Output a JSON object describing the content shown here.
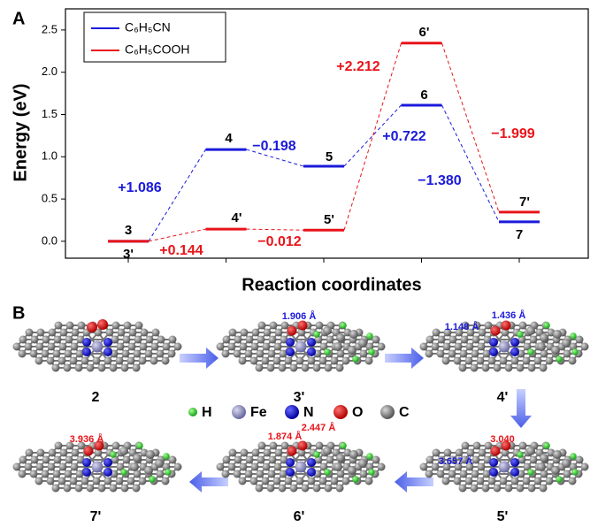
{
  "chart_data": {
    "type": "level",
    "panel_label": "A",
    "y_label": "Energy (eV)",
    "x_label": "Reaction coordinates",
    "categories": [
      null,
      null,
      null,
      null,
      null
    ],
    "ylim": [
      -0.2,
      2.75
    ],
    "yticks": [
      {
        "value": 0,
        "label": "0.0"
      },
      {
        "value": 0.5,
        "label": "0.5"
      },
      {
        "value": 1,
        "label": "1.0"
      },
      {
        "value": 1.5,
        "label": "1.5"
      },
      {
        "value": 2,
        "label": "2.0"
      },
      {
        "value": 2.5,
        "label": "2.5"
      }
    ],
    "legend": "upper left",
    "series": [
      {
        "name": "C₆H₅CN",
        "color": "#1a1adb",
        "values": [
          0,
          1.086,
          0.888,
          1.61,
          0.23
        ],
        "level_labels": [
          "3",
          "4",
          "5",
          "6",
          "7"
        ],
        "step_labels": [
          "+1.086",
          "−0.198",
          "+0.722",
          "−1.380"
        ]
      },
      {
        "name": "C₆H₅COOH",
        "color": "#e8141a",
        "values": [
          0,
          0.144,
          0.132,
          2.344,
          0.345
        ],
        "level_labels": [
          "3'",
          "4'",
          "5'",
          "6'",
          "7'"
        ],
        "step_labels": [
          "+0.144",
          "−0.012",
          "+2.212",
          "−1.999"
        ]
      }
    ]
  },
  "figure_b": {
    "panel_label": "B",
    "structures": [
      "2",
      "3'",
      "4'",
      "7'",
      "6'",
      "5'"
    ],
    "atom_legend": [
      "H",
      "Fe",
      "N",
      "O",
      "C"
    ],
    "distances": [
      "1.906 Å",
      "1.148 Å",
      "1.436 Å",
      "3.936 Å",
      "2.447 Å",
      "1.874 Å",
      "3.040",
      "3.657 Å"
    ]
  }
}
